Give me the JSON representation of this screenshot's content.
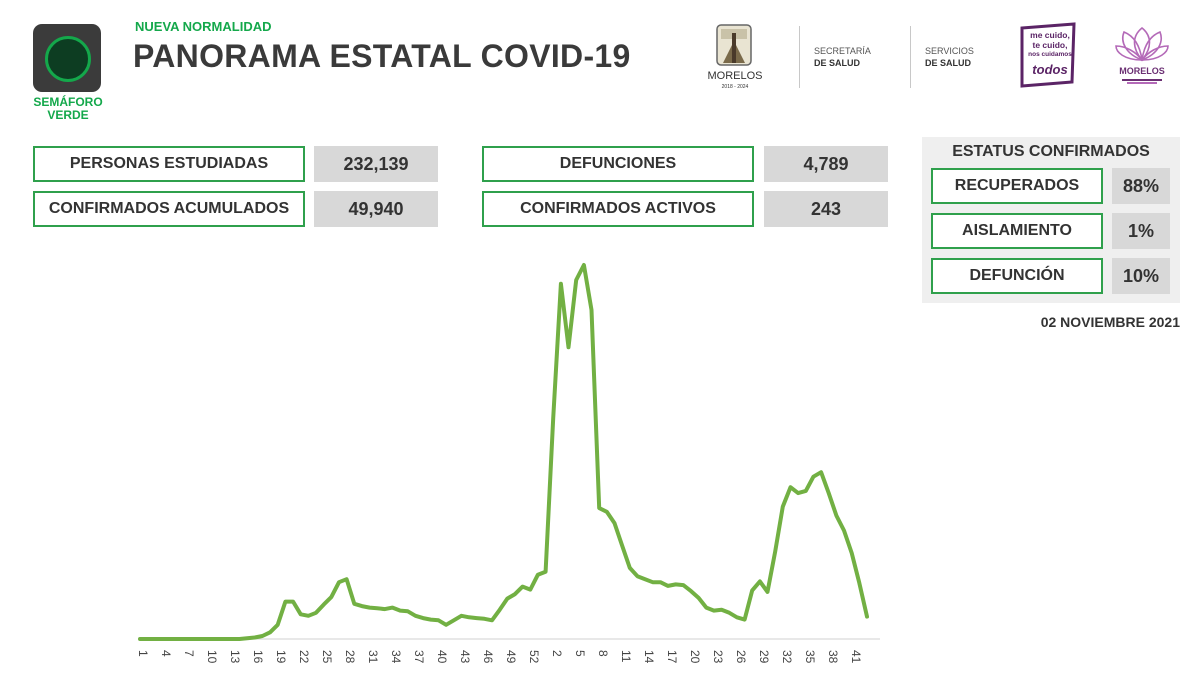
{
  "header": {
    "semaforo_label": "SEMÁFORO VERDE",
    "subtitle": "NUEVA NORMALIDAD",
    "title": "PANORAMA ESTATAL COVID-19"
  },
  "logos": {
    "morelos": "MORELOS",
    "morelos_years": "2018 - 2024",
    "secretaria_line1": "SECRETARÍA",
    "secretaria_line2": "DE SALUD",
    "servicios_line1": "SERVICIOS",
    "servicios_line2": "DE SALUD",
    "cuido_line1": "me cuido,",
    "cuido_line2": "te cuido,",
    "cuido_line3": "nos cuidamos",
    "cuido_todos": "todos",
    "lotus_word": "MORELOS"
  },
  "stats": {
    "personas_label": "PERSONAS ESTUDIADAS",
    "personas_value": "232,139",
    "confirmados_label": "CONFIRMADOS ACUMULADOS",
    "confirmados_value": "49,940",
    "defunciones_label": "DEFUNCIONES",
    "defunciones_value": "4,789",
    "activos_label": "CONFIRMADOS ACTIVOS",
    "activos_value": "243"
  },
  "status": {
    "title": "ESTATUS CONFIRMADOS",
    "recuperados_label": "RECUPERADOS",
    "recuperados_value": "88%",
    "aislamiento_label": "AISLAMIENTO",
    "aislamiento_value": "1%",
    "defuncion_label": "DEFUNCIÓN",
    "defuncion_value": "10%",
    "date": "02 NOVIEMBRE 2021"
  },
  "colors": {
    "accent_green": "#2fa04c",
    "line_green": "#72b043",
    "purple": "#5b2466"
  },
  "chart_data": {
    "type": "line",
    "title": "",
    "xlabel": "",
    "ylabel": "",
    "grid": false,
    "y_axis_visible": false,
    "tick_labels": [
      "1",
      "4",
      "7",
      "10",
      "13",
      "16",
      "19",
      "22",
      "25",
      "28",
      "31",
      "34",
      "37",
      "40",
      "43",
      "46",
      "49",
      "52",
      "2",
      "5",
      "8",
      "11",
      "14",
      "17",
      "20",
      "23",
      "26",
      "29",
      "32",
      "35",
      "38",
      "41"
    ],
    "ylim": [
      0,
      1000
    ],
    "series": [
      {
        "values": [
          0,
          0,
          0,
          0,
          0,
          0,
          0,
          0,
          0,
          0,
          0,
          0,
          0,
          0,
          2,
          4,
          8,
          18,
          38,
          100,
          100,
          66,
          62,
          70,
          92,
          112,
          152,
          160,
          94,
          88,
          84,
          82,
          80,
          84,
          76,
          74,
          62,
          56,
          52,
          50,
          38,
          50,
          62,
          58,
          56,
          54,
          50,
          78,
          108,
          120,
          140,
          132,
          172,
          180,
          590,
          950,
          780,
          960,
          1000,
          880,
          350,
          340,
          310,
          250,
          190,
          168,
          160,
          152,
          152,
          142,
          146,
          144,
          128,
          110,
          84,
          76,
          78,
          70,
          58,
          52,
          130,
          154,
          126,
          234,
          354,
          406,
          390,
          396,
          434,
          446,
          390,
          330,
          290,
          230,
          150,
          60
        ]
      }
    ]
  }
}
